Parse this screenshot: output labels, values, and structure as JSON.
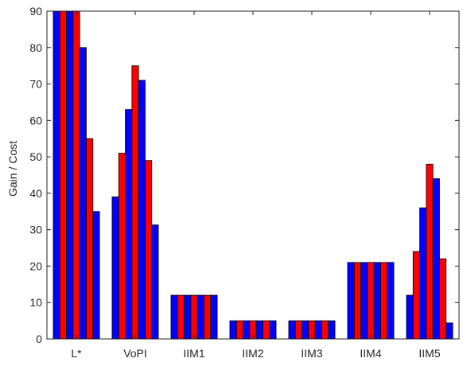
{
  "chart_data": {
    "type": "bar",
    "title": "",
    "xlabel": "",
    "ylabel": "Gain / Cost",
    "ylim": [
      0,
      90
    ],
    "yticks": [
      0,
      10,
      20,
      30,
      40,
      50,
      60,
      70,
      80,
      90
    ],
    "grid": false,
    "categories": [
      "L*",
      "VoPI",
      "IIM1",
      "IIM2",
      "IIM3",
      "IIM4",
      "IIM5"
    ],
    "bar_colors": [
      "#0000ff",
      "#ff0000",
      "#0000ff",
      "#ff0000",
      "#0000ff",
      "#ff0000",
      "#0000ff"
    ],
    "edge_color": "#000000",
    "series": [
      {
        "values": [
          90,
          39,
          12,
          5,
          5,
          21,
          12
        ]
      },
      {
        "values": [
          90,
          51,
          12,
          5,
          5,
          21,
          24
        ]
      },
      {
        "values": [
          90,
          63,
          12,
          5,
          5,
          21,
          36
        ]
      },
      {
        "values": [
          90,
          75,
          12,
          5,
          5,
          21,
          48
        ]
      },
      {
        "values": [
          80,
          71,
          12,
          5,
          5,
          21,
          44
        ]
      },
      {
        "values": [
          55,
          49,
          12,
          5,
          5,
          21,
          22
        ]
      },
      {
        "values": [
          35,
          31.3,
          12,
          5,
          5,
          21,
          4.4
        ]
      }
    ]
  }
}
